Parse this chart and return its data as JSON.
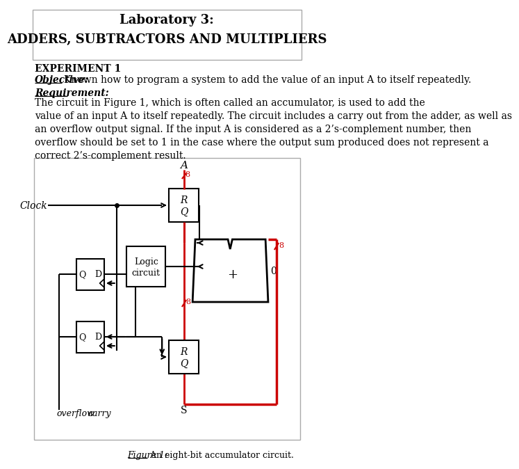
{
  "title1": "Laboratory 3:",
  "title2": "ADDERS, SUBTRACTORS AND MULTIPLIERS",
  "section": "EXPERIMENT 1",
  "objective_label": "Objective:",
  "objective_text": "Known how to program a system to add the value of an input A to itself repeatedly.",
  "requirement_label": "Requirement:",
  "req_line1": "The circuit in Figure 1, which is often called an accumulator, is used to add the",
  "req_line2": "value of an input A to itself repeatedly. The circuit includes a carry out from the adder, as well as",
  "req_line3": "an overflow output signal. If the input A is considered as a 2’s-complement number, then",
  "req_line4": "overflow should be set to 1 in the case where the output sum produced does not represent a",
  "req_line5": "correct 2’s-complement result.",
  "fig_caption": "Figure 1:",
  "fig_caption2": " An eight-bit accumulator circuit.",
  "bg_color": "#ffffff",
  "text_color": "#000000",
  "red_color": "#cc0000"
}
